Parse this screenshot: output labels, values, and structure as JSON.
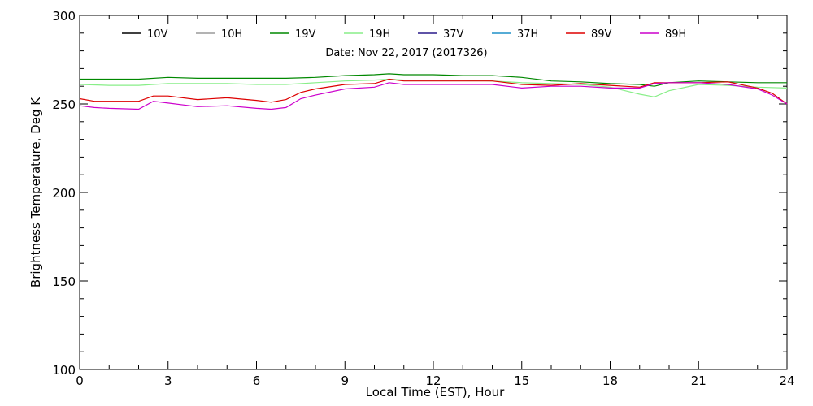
{
  "chart_data": {
    "type": "line",
    "title": "Date: Nov 22, 2017 (2017326)",
    "xlabel": "Local Time (EST), Hour",
    "ylabel": "Brightness Temperature, Deg K",
    "xlim": [
      0,
      24
    ],
    "ylim": [
      100,
      300
    ],
    "xticks": [
      0,
      3,
      6,
      9,
      12,
      15,
      18,
      21,
      24
    ],
    "yticks": [
      100,
      150,
      200,
      250,
      300
    ],
    "grid": false,
    "legend_position": "top",
    "legend": [
      {
        "name": "10V",
        "color": "#000000"
      },
      {
        "name": "10H",
        "color": "#9a9a9a"
      },
      {
        "name": "19V",
        "color": "#008800"
      },
      {
        "name": "19H",
        "color": "#88ee88"
      },
      {
        "name": "37V",
        "color": "#2a1a8a"
      },
      {
        "name": "37H",
        "color": "#1e90c8"
      },
      {
        "name": "89V",
        "color": "#dd0000"
      },
      {
        "name": "89H",
        "color": "#cc00cc"
      }
    ],
    "series": [
      {
        "name": "19V",
        "color": "#008800",
        "x": [
          0,
          1,
          2,
          3,
          4,
          5,
          6,
          7,
          8,
          9,
          10,
          10.5,
          11,
          12,
          13,
          14,
          15,
          16,
          17,
          18,
          19,
          19.5,
          20,
          21,
          22,
          23,
          24
        ],
        "y": [
          264,
          264,
          264,
          265,
          264.5,
          264.5,
          264.5,
          264.5,
          265,
          266,
          266.5,
          267,
          266.5,
          266.5,
          266,
          266,
          265,
          263,
          262.5,
          261.5,
          261,
          260,
          262,
          263,
          262.5,
          262,
          262
        ]
      },
      {
        "name": "19H",
        "color": "#88ee88",
        "x": [
          0,
          1,
          2,
          3,
          4,
          5,
          6,
          7,
          8,
          9,
          10,
          10.5,
          11,
          12,
          13,
          14,
          15,
          16,
          17,
          18,
          19,
          19.5,
          20,
          21,
          22,
          23,
          24
        ],
        "y": [
          261,
          260.5,
          260.5,
          261.5,
          261.5,
          261.5,
          261,
          261,
          262,
          263,
          263.5,
          264,
          263.5,
          263.5,
          263.5,
          263,
          262,
          261.5,
          261,
          259.5,
          255.5,
          254,
          257.5,
          261,
          260.5,
          259.5,
          259
        ]
      },
      {
        "name": "89V",
        "color": "#dd0000",
        "x": [
          0,
          0.5,
          1,
          2,
          2.5,
          3,
          4,
          5,
          6,
          6.5,
          7,
          7.5,
          8,
          9,
          10,
          10.5,
          11,
          12,
          13,
          14,
          15,
          16,
          17,
          18,
          19,
          19.5,
          20,
          21,
          22,
          23,
          23.5,
          24
        ],
        "y": [
          253,
          251.5,
          251.5,
          251.5,
          254.5,
          254.5,
          252.5,
          253.5,
          252,
          251,
          252.5,
          256.5,
          258.5,
          261,
          261.5,
          264,
          263,
          263,
          263,
          263,
          261,
          260.5,
          261.5,
          260.5,
          259.5,
          262,
          262,
          262,
          262.5,
          259,
          256,
          250
        ]
      },
      {
        "name": "89H",
        "color": "#cc00cc",
        "x": [
          0,
          0.5,
          1,
          2,
          2.5,
          3,
          4,
          5,
          6,
          6.5,
          7,
          7.5,
          8,
          9,
          10,
          10.5,
          11,
          12,
          13,
          14,
          15,
          16,
          17,
          18,
          19,
          19.5,
          20,
          21,
          22,
          23,
          23.5,
          24
        ],
        "y": [
          249,
          248,
          247.5,
          247,
          251.5,
          250.5,
          248.5,
          249,
          247.5,
          247,
          248,
          253,
          255,
          258.5,
          259.5,
          262,
          261,
          261,
          261,
          261,
          259,
          260,
          260,
          259,
          259,
          261.5,
          262,
          262,
          261,
          258.5,
          255,
          250
        ]
      }
    ]
  }
}
